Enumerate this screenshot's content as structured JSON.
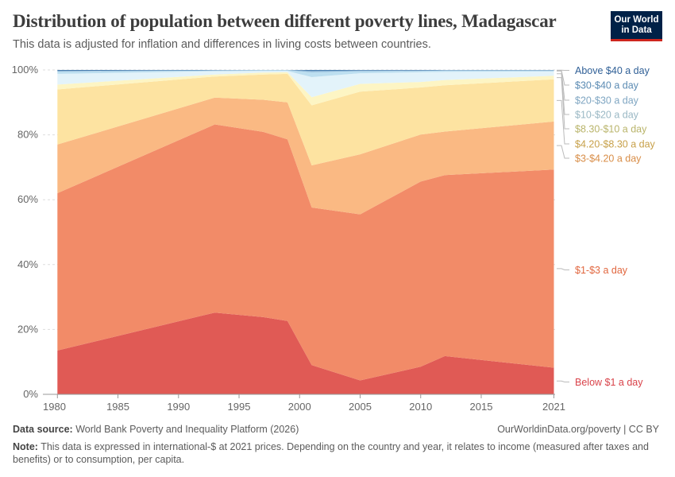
{
  "header": {
    "title": "Distribution of population between different poverty lines, Madagascar",
    "subtitle": "This data is adjusted for inflation and differences in living costs between countries."
  },
  "logo": {
    "line1": "Our World",
    "line2": "in Data"
  },
  "footer": {
    "source_label": "Data source:",
    "source_text": "World Bank Poverty and Inequality Platform (2026)",
    "url": "OurWorldinData.org/poverty | CC BY",
    "note_label": "Note:",
    "note_text": "This data is expressed in international-$ at 2021 prices. Depending on the country and year, it relates to income (measured after taxes and benefits) or to consumption, per capita."
  },
  "chart_data": {
    "type": "area",
    "stacked": true,
    "x": [
      1980,
      1993,
      1997,
      1999,
      2001,
      2005,
      2010,
      2012,
      2021
    ],
    "xlim": [
      1978.8,
      2021.1
    ],
    "ylim": [
      0,
      100
    ],
    "x_ticks": [
      "1980",
      "1985",
      "1990",
      "1995",
      "2000",
      "2005",
      "2010",
      "2015",
      "2021"
    ],
    "x_tick_values": [
      1980,
      1985,
      1990,
      1995,
      2000,
      2005,
      2010,
      2015,
      2021
    ],
    "y_ticks": [
      "0%",
      "20%",
      "40%",
      "60%",
      "80%",
      "100%"
    ],
    "y_tick_values": [
      0,
      20,
      40,
      60,
      80,
      100
    ],
    "grid": "horizontal dotted",
    "legend": "right",
    "series": [
      {
        "name": "Below $1 a day",
        "color": "#e05a55",
        "values": [
          13.5,
          25.2,
          23.8,
          22.6,
          9.0,
          4.3,
          8.5,
          11.8,
          8.2
        ]
      },
      {
        "name": "$1-$3 a day",
        "color": "#f28b68",
        "values": [
          48.5,
          58.0,
          57.1,
          56.0,
          48.6,
          51.2,
          57.1,
          55.8,
          61.1
        ]
      },
      {
        "name": "$3-$4.20 a day",
        "color": "#fab983",
        "values": [
          15.0,
          8.3,
          9.9,
          11.4,
          13.0,
          18.5,
          14.5,
          13.4,
          14.8
        ]
      },
      {
        "name": "$4.20-$8.30 a day",
        "color": "#fde3a1",
        "values": [
          17.0,
          6.5,
          7.8,
          8.8,
          18.5,
          19.3,
          14.5,
          14.3,
          13.0
        ]
      },
      {
        "name": "$8.30-$10 a day",
        "color": "#fdf5c4",
        "values": [
          1.5,
          0.6,
          0.6,
          0.5,
          2.5,
          2.4,
          1.7,
          1.6,
          1.1
        ]
      },
      {
        "name": "$10-$20 a day",
        "color": "#e3f3fa",
        "values": [
          3.3,
          1.0,
          0.5,
          0.4,
          6.2,
          3.3,
          3.0,
          2.5,
          1.3
        ]
      },
      {
        "name": "$20-$30 a day",
        "color": "#bddff0",
        "values": [
          0.7,
          0.2,
          0.2,
          0.2,
          1.5,
          0.6,
          0.4,
          0.4,
          0.3
        ]
      },
      {
        "name": "$30-$40 a day",
        "color": "#8fb9d9",
        "values": [
          0.2,
          0.1,
          0.1,
          0.1,
          0.4,
          0.2,
          0.1,
          0.1,
          0.1
        ]
      },
      {
        "name": "Above $40 a day",
        "color": "#4a7fb0",
        "values": [
          0.3,
          0.1,
          0.0,
          0.0,
          0.3,
          0.2,
          0.2,
          0.1,
          0.1
        ]
      }
    ],
    "legend_colors": [
      "#d9434a",
      "#e1673f",
      "#d88d47",
      "#c7a049",
      "#b9b46a",
      "#9ab8c4",
      "#7fa6c2",
      "#5b8bb3",
      "#2f5f96"
    ]
  }
}
